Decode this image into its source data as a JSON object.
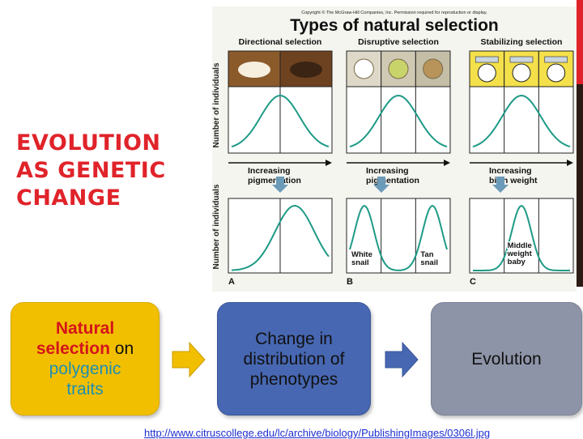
{
  "slide": {
    "title": "EVOLUTION\nAS GENETIC\nCHANGE",
    "accent_color": "#e0232a"
  },
  "figure": {
    "copyright": "Copyright © The McGraw-Hill Companies, Inc. Permission required for reproduction or display.",
    "title": "Types of natural selection",
    "y_axis_label": "Number of individuals",
    "columns": [
      {
        "heading": "Directional selection",
        "arrow_label": [
          "Increasing",
          "pigmentation"
        ],
        "panel_letter": "A",
        "labels": []
      },
      {
        "heading": "Disruptive selection",
        "arrow_label": [
          "Increasing",
          "pigmentation"
        ],
        "panel_letter": "B",
        "labels": [
          [
            "White",
            "snail"
          ],
          [
            "Tan",
            "snail"
          ]
        ]
      },
      {
        "heading": "Stabilizing selection",
        "arrow_label": [
          "Increasing",
          "birth weight"
        ],
        "panel_letter": "C",
        "labels": [
          [
            "Middle",
            "weight",
            "baby"
          ]
        ]
      }
    ]
  },
  "flowchart": {
    "box1": {
      "part1": "Natural",
      "part2": "selection",
      "part3": "on",
      "part4": "polygenic",
      "part5": "traits"
    },
    "box2": "Change in distribution of phenotypes",
    "box3": "Evolution",
    "arrow_colors": [
      "#f2bf00",
      "#4767b2"
    ]
  },
  "source_url": "http://www.citruscollege.edu/lc/archive/biology/PublishingImages/0306l.jpg"
}
